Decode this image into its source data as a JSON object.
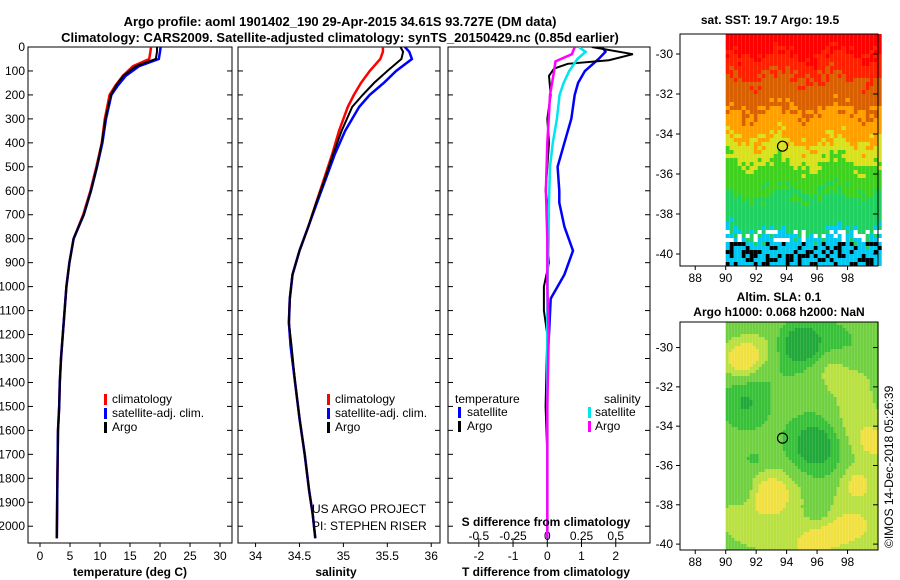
{
  "title_line1": "Argo profile: aoml 1901402_190 29-Apr-2015 34.61S 93.727E (DM data)",
  "title_line2": "Climatology: CARS2009. Satellite-adjusted climatology: synTS_20150429.nc (0.85d earlier)",
  "map1_title": "sat. SST: 19.7 Argo: 19.5",
  "map2_title_line1": "Altim. SLA: 0.1",
  "map2_title_line2": "Argo h1000: 0.068 h2000: NaN",
  "imos_stamp": "©IMOS 14-Dec-2018 05:26:39",
  "project_line1": "US ARGO PROJECT",
  "project_line2": "PI: STEPHEN RISER",
  "colors": {
    "climatology": "#ff0000",
    "satellite": "#0000ff",
    "argo": "#000000",
    "sat_cyan": "#00e5ee",
    "argo_magenta": "#ff00ff"
  },
  "chart_data": [
    {
      "type": "line",
      "name": "temperature",
      "xlabel": "temperature (deg C)",
      "ylabel": "",
      "xlim": [
        -2,
        32
      ],
      "ylim": [
        2070,
        0
      ],
      "xticks": [
        "0",
        "5",
        "10",
        "15",
        "20",
        "25",
        "30"
      ],
      "xtick_values": [
        0,
        5,
        10,
        15,
        20,
        25,
        30
      ],
      "yticks": [
        0,
        100,
        200,
        300,
        400,
        500,
        600,
        700,
        800,
        900,
        1000,
        1100,
        1200,
        1300,
        1400,
        1500,
        1600,
        1700,
        1800,
        1900,
        2000
      ],
      "legend": [
        "climatology",
        "satellite-adj. clim.",
        "Argo"
      ],
      "series": [
        {
          "name": "climatology",
          "x": [
            18.5,
            18.4,
            18.2,
            15.5,
            13.8,
            12.6,
            11.6,
            10.8,
            10.3,
            9.4,
            8.4,
            7.2,
            5.6,
            4.9,
            4.4,
            4.1,
            3.8,
            3.5,
            3.3,
            3.2,
            3.0,
            2.9,
            2.8
          ],
          "y": [
            0,
            20,
            50,
            80,
            120,
            160,
            200,
            300,
            400,
            500,
            600,
            700,
            800,
            900,
            1000,
            1100,
            1200,
            1300,
            1400,
            1500,
            1600,
            1800,
            2050
          ]
        },
        {
          "name": "satellite-adj. clim.",
          "x": [
            20.1,
            20.0,
            19.8,
            16.5,
            14.3,
            13.0,
            11.9,
            11.0,
            10.4,
            9.5,
            8.5,
            7.3,
            5.6,
            4.9,
            4.4,
            4.1,
            3.8,
            3.5,
            3.3,
            3.2,
            3.0,
            2.9,
            2.8
          ],
          "y": [
            0,
            20,
            50,
            80,
            120,
            160,
            200,
            300,
            400,
            500,
            600,
            700,
            800,
            900,
            1000,
            1100,
            1200,
            1300,
            1400,
            1500,
            1600,
            1800,
            2050
          ]
        },
        {
          "name": "Argo",
          "x": [
            19.5,
            19.5,
            19.3,
            16.0,
            13.9,
            12.7,
            11.8,
            10.9,
            10.3,
            9.5,
            8.5,
            7.3,
            5.6,
            4.9,
            4.4,
            4.1,
            3.8,
            3.5,
            3.3,
            3.2,
            3.0,
            2.9,
            2.8
          ],
          "y": [
            0,
            20,
            50,
            80,
            120,
            160,
            200,
            300,
            400,
            500,
            600,
            700,
            800,
            900,
            1000,
            1100,
            1200,
            1300,
            1400,
            1500,
            1600,
            1800,
            2050
          ]
        }
      ]
    },
    {
      "type": "line",
      "name": "salinity",
      "xlabel": "salinity",
      "xlim": [
        33.8,
        36.1
      ],
      "ylim": [
        2070,
        0
      ],
      "xticks": [
        "34",
        "34.5",
        "35",
        "35.5",
        "36"
      ],
      "xtick_values": [
        34,
        34.5,
        35,
        35.5,
        36
      ],
      "legend": [
        "climatology",
        "satellite-adj. clim.",
        "Argo"
      ],
      "series": [
        {
          "name": "climatology",
          "x": [
            35.45,
            35.45,
            35.42,
            35.3,
            35.2,
            35.12,
            35.05,
            34.95,
            34.87,
            34.78,
            34.69,
            34.6,
            34.5,
            34.42,
            34.39,
            34.38,
            34.4,
            34.45,
            34.5,
            34.56,
            34.61,
            34.65,
            34.68
          ],
          "y": [
            0,
            20,
            50,
            100,
            150,
            200,
            250,
            350,
            450,
            550,
            650,
            750,
            850,
            950,
            1050,
            1150,
            1250,
            1400,
            1550,
            1700,
            1850,
            1950,
            2050
          ]
        },
        {
          "name": "satellite-adj. clim.",
          "x": [
            35.7,
            35.75,
            35.78,
            35.6,
            35.46,
            35.3,
            35.18,
            35.02,
            34.9,
            34.8,
            34.7,
            34.6,
            34.5,
            34.42,
            34.39,
            34.38,
            34.4,
            34.45,
            34.5,
            34.56,
            34.61,
            34.65,
            34.68
          ],
          "y": [
            0,
            20,
            50,
            100,
            150,
            200,
            250,
            350,
            450,
            550,
            650,
            750,
            850,
            950,
            1050,
            1150,
            1250,
            1400,
            1550,
            1700,
            1850,
            1950,
            2050
          ]
        },
        {
          "name": "Argo",
          "x": [
            35.65,
            35.68,
            35.66,
            35.5,
            35.35,
            35.22,
            35.1,
            34.98,
            34.88,
            34.79,
            34.69,
            34.6,
            34.5,
            34.42,
            34.39,
            34.38,
            34.41,
            34.45,
            34.5,
            34.56,
            34.61,
            34.65,
            34.68
          ],
          "y": [
            0,
            20,
            50,
            100,
            150,
            200,
            250,
            350,
            450,
            550,
            650,
            750,
            850,
            950,
            1050,
            1150,
            1250,
            1400,
            1550,
            1700,
            1850,
            1950,
            2050
          ]
        }
      ]
    },
    {
      "type": "line",
      "name": "difference",
      "xlabel": "T difference from climatology",
      "xlabel_top": "S difference from climatology",
      "xlim": [
        -2.9,
        3.0
      ],
      "ylim": [
        2070,
        0
      ],
      "xticks": [
        "-2",
        "-1",
        "0",
        "1",
        "2"
      ],
      "xtick_values": [
        -2,
        -1,
        0,
        1,
        2
      ],
      "s_ticks": [
        "-0.5",
        "-0.25",
        "0",
        "0.25",
        "0.5"
      ],
      "s_tick_values": [
        -0.5,
        -0.25,
        0,
        0.25,
        0.5
      ],
      "legend_temperature_title": "temperature",
      "legend_salinity_title": "salinity",
      "legend_temperature": [
        "satellite",
        "Argo"
      ],
      "legend_salinity": [
        "satellite",
        "Argo"
      ],
      "series": [
        {
          "name": "T satellite",
          "x": [
            1.6,
            1.7,
            1.5,
            1.1,
            0.9,
            0.8,
            0.7,
            0.5,
            0.3,
            0.35,
            0.35,
            0.5,
            0.75,
            0.5,
            0.1,
            0.05,
            0,
            0,
            0,
            0,
            0,
            0
          ],
          "y": [
            0,
            20,
            50,
            100,
            150,
            200,
            300,
            400,
            500,
            600,
            650,
            750,
            850,
            950,
            1050,
            1200,
            1300,
            1500,
            1600,
            1700,
            1800,
            2050
          ]
        },
        {
          "name": "T Argo",
          "x": [
            1.3,
            2.5,
            1.8,
            0.6,
            0.2,
            0.05,
            0.1,
            0,
            0.05,
            0,
            -0.05,
            0.05,
            0,
            0.05,
            -0.1,
            -0.1,
            0,
            -0.05,
            0,
            0
          ],
          "y": [
            0,
            30,
            55,
            70,
            90,
            120,
            200,
            300,
            400,
            500,
            600,
            700,
            800,
            900,
            1000,
            1100,
            1200,
            1500,
            1700,
            2050
          ]
        },
        {
          "name": "S satellite",
          "x": [
            0.23,
            0.28,
            0.22,
            0.16,
            0.12,
            0.09,
            0.07,
            0.04,
            0.02,
            0.015,
            0.01,
            0.01,
            0.005,
            0,
            0,
            0,
            0
          ],
          "y": [
            0,
            20,
            50,
            100,
            150,
            200,
            300,
            400,
            500,
            600,
            700,
            800,
            900,
            1100,
            1300,
            1600,
            2050
          ]
        },
        {
          "name": "S Argo",
          "x": [
            0.2,
            0.18,
            0.06,
            0.05,
            0.02,
            0.01,
            0,
            -0.01,
            0,
            0,
            0.01,
            0,
            0,
            0
          ],
          "y": [
            0,
            30,
            60,
            100,
            200,
            300,
            400,
            600,
            800,
            1000,
            1200,
            1500,
            1800,
            2050
          ]
        }
      ]
    },
    {
      "type": "heatmap",
      "name": "sst_map",
      "x_ticks": [
        "88",
        "90",
        "92",
        "94",
        "96",
        "98"
      ],
      "x_tick_values": [
        88,
        90,
        92,
        94,
        96,
        98
      ],
      "y_ticks": [
        "-30",
        "-32",
        "-34",
        "-36",
        "-38",
        "-40"
      ],
      "y_tick_values": [
        -30,
        -32,
        -34,
        -36,
        -38,
        -40
      ],
      "xlim": [
        87,
        100
      ],
      "ylim": [
        -40.6,
        -29
      ],
      "data_xlim": [
        90,
        100
      ],
      "argo_position": [
        93.73,
        -34.61
      ]
    },
    {
      "type": "heatmap",
      "name": "sla_map",
      "x_ticks": [
        "88",
        "90",
        "92",
        "94",
        "96",
        "98"
      ],
      "x_tick_values": [
        88,
        90,
        92,
        94,
        96,
        98
      ],
      "y_ticks": [
        "-30",
        "-32",
        "-34",
        "-36",
        "-38",
        "-40"
      ],
      "y_tick_values": [
        -30,
        -32,
        -34,
        -36,
        -38,
        -40
      ],
      "xlim": [
        87,
        100
      ],
      "ylim": [
        -40.3,
        -28.7
      ],
      "data_xlim": [
        90,
        100
      ],
      "argo_position": [
        93.73,
        -34.61
      ]
    }
  ]
}
